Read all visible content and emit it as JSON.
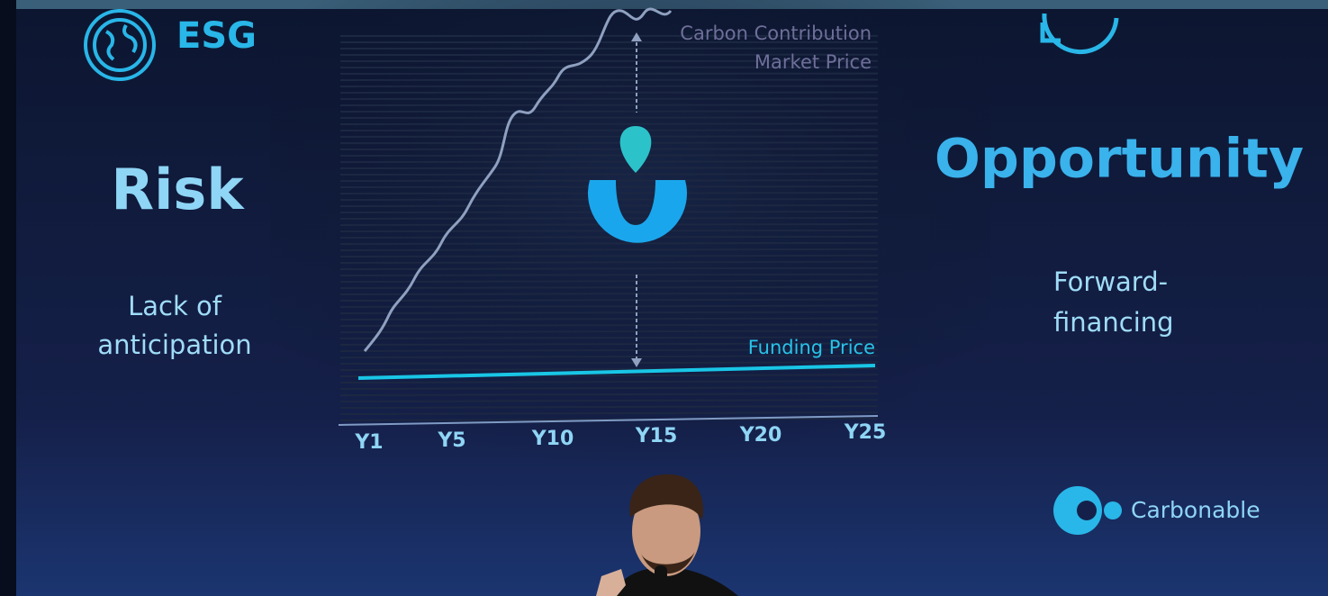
{
  "left": {
    "badge": "ESG",
    "title": "Risk",
    "subtitle_lines": [
      "Lack of",
      "anticipation"
    ]
  },
  "chart": {
    "top_labels": [
      "Carbon Contribution",
      "Market Price"
    ],
    "funding_label": "Funding Price",
    "x_labels": [
      "Y1",
      "Y5",
      "Y10",
      "Y15",
      "Y20",
      "Y25"
    ]
  },
  "right": {
    "title": "Opportunity",
    "subtitle_lines": [
      "Forward-",
      "financing"
    ]
  },
  "brand": "Carbonable"
}
